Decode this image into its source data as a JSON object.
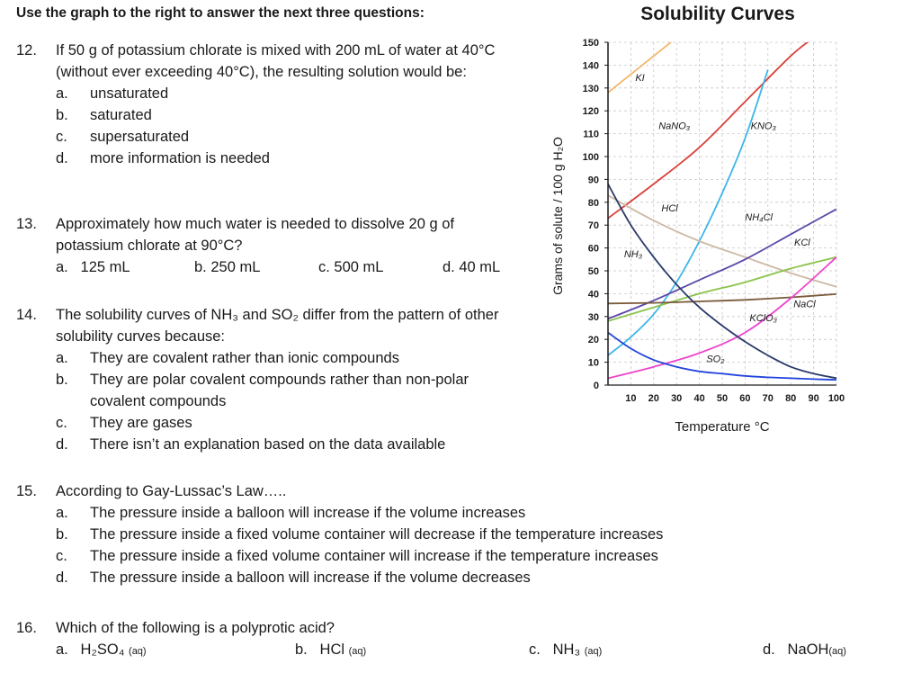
{
  "intro": "Use the graph to the right to answer the next three questions:",
  "questions": [
    {
      "number": "12.",
      "text": "If 50 g of potassium chlorate is mixed with 200 mL of water at 40°C (without ever exceeding 40°C), the resulting solution would be:",
      "options": [
        {
          "letter": "a.",
          "text": "unsaturated"
        },
        {
          "letter": "b.",
          "text": "saturated"
        },
        {
          "letter": "c.",
          "text": "supersaturated"
        },
        {
          "letter": "d.",
          "text": "more information is needed"
        }
      ]
    },
    {
      "number": "13.",
      "text": "Approximately how much water is needed to dissolve 20 g of potassium chlorate at 90°C?",
      "options": [
        {
          "letter": "a.",
          "text": "125 mL"
        },
        {
          "letter": "",
          "text": "b. 250 mL"
        },
        {
          "letter": "",
          "text": "c. 500 mL"
        },
        {
          "letter": "",
          "text": "d. 40 mL"
        }
      ]
    },
    {
      "number": "14.",
      "text": "The solubility curves of NH₃ and SO₂ differ from the pattern of other solubility curves because:",
      "options": [
        {
          "letter": "a.",
          "text": "They are covalent rather than ionic compounds"
        },
        {
          "letter": "b.",
          "text": "They are polar covalent compounds rather than non-polar covalent compounds"
        },
        {
          "letter": "c.",
          "text": "They are gases"
        },
        {
          "letter": "d.",
          "text": "There isn’t an explanation based on the data available"
        }
      ]
    },
    {
      "number": "15.",
      "text": "According to Gay-Lussac’s Law…..",
      "options": [
        {
          "letter": "a.",
          "text": "The pressure inside a balloon will increase if the volume increases"
        },
        {
          "letter": "b.",
          "text": "The pressure inside a fixed volume container will decrease if the temperature increases"
        },
        {
          "letter": "c.",
          "text": "The pressure inside a fixed volume container will increase if the temperature increases"
        },
        {
          "letter": "d.",
          "text": "The pressure inside a balloon will increase if the volume decreases"
        }
      ]
    },
    {
      "number": "16.",
      "text": "Which of the following is a polyprotic acid?",
      "options": [
        {
          "letter": "a.",
          "formula": "H₂SO₄",
          "state": "(aq)"
        },
        {
          "letter": "b.",
          "formula": "HCl",
          "state": "(aq)"
        },
        {
          "letter": "c.",
          "formula": "NH₃",
          "state": "(aq)"
        },
        {
          "letter": "d.",
          "formula": "NaOH",
          "state": "(aq)"
        }
      ]
    }
  ],
  "chart_data": {
    "type": "line",
    "title": "Solubility Curves",
    "xlabel": "Temperature °C",
    "ylabel": "Grams of solute / 100 g H₂O",
    "xlim": [
      0,
      100
    ],
    "ylim": [
      0,
      150
    ],
    "xticks": [
      10,
      20,
      30,
      40,
      50,
      60,
      70,
      80,
      90,
      100
    ],
    "yticks": [
      0,
      10,
      20,
      30,
      40,
      50,
      60,
      70,
      80,
      90,
      100,
      110,
      120,
      130,
      140,
      150
    ],
    "grid": true,
    "series": [
      {
        "name": "KI",
        "color": "#f4b66a",
        "x": [
          0,
          10,
          20,
          30
        ],
        "y": [
          128,
          136,
          144,
          152
        ]
      },
      {
        "name": "NaNO₃",
        "color": "#d9413a",
        "x": [
          0,
          20,
          40,
          60,
          80,
          90
        ],
        "y": [
          73,
          88,
          104,
          124,
          144,
          152
        ]
      },
      {
        "name": "KNO₃",
        "color": "#3db6e8",
        "x": [
          0,
          10,
          20,
          30,
          40,
          50,
          60,
          70
        ],
        "y": [
          13,
          21,
          31,
          45,
          63,
          84,
          108,
          138
        ]
      },
      {
        "name": "HCl",
        "color": "#cdb9a4",
        "x": [
          0,
          20,
          40,
          60,
          80,
          100
        ],
        "y": [
          83,
          72,
          63,
          56,
          49,
          43
        ]
      },
      {
        "name": "NH₄Cl",
        "color": "#5b48a8",
        "x": [
          0,
          20,
          40,
          60,
          80,
          100
        ],
        "y": [
          29,
          37,
          46,
          55,
          66,
          77
        ]
      },
      {
        "name": "KCl",
        "color": "#8bc34a",
        "x": [
          0,
          20,
          40,
          60,
          80,
          100
        ],
        "y": [
          28,
          34,
          40,
          45,
          51,
          56
        ]
      },
      {
        "name": "NaCl",
        "color": "#7a5a3a",
        "x": [
          0,
          20,
          40,
          60,
          80,
          100
        ],
        "y": [
          35.7,
          36,
          36.6,
          37.3,
          38.4,
          39.8
        ]
      },
      {
        "name": "KClO₃",
        "color": "#ee44cc",
        "x": [
          0,
          20,
          40,
          60,
          80,
          100
        ],
        "y": [
          3,
          8,
          14,
          23,
          38,
          56
        ]
      },
      {
        "name": "NH₃",
        "color": "#2a3a6a",
        "x": [
          0,
          10,
          20,
          30,
          40,
          50,
          60,
          70,
          80,
          90,
          100
        ],
        "y": [
          88,
          70,
          56,
          44,
          34,
          26,
          19,
          13,
          8,
          5,
          3
        ]
      },
      {
        "name": "SO₂",
        "color": "#2244dd",
        "x": [
          0,
          10,
          20,
          30,
          40,
          50,
          60,
          70,
          80,
          90,
          100
        ],
        "y": [
          23,
          16,
          11,
          8,
          6,
          5,
          4,
          3.4,
          3,
          2.6,
          2.3
        ]
      }
    ],
    "labels": [
      {
        "text": "KI",
        "x": 14,
        "y": 133,
        "color": "#f4b66a"
      },
      {
        "text": "NaNO₃",
        "x": 29,
        "y": 112,
        "color": "#d9413a"
      },
      {
        "text": "KNO₃",
        "x": 68,
        "y": 112,
        "color": "#3db6e8"
      },
      {
        "text": "HCl",
        "x": 27,
        "y": 76,
        "color": "#cdb9a4"
      },
      {
        "text": "NH₄Cl",
        "x": 66,
        "y": 72,
        "color": "#5b48a8"
      },
      {
        "text": "KCl",
        "x": 85,
        "y": 61,
        "color": "#8bc34a"
      },
      {
        "text": "NH₃",
        "x": 11,
        "y": 56,
        "color": "#2a3a6a"
      },
      {
        "text": "NaCl",
        "x": 86,
        "y": 34,
        "color": "#7a5a3a"
      },
      {
        "text": "KClO₃",
        "x": 68,
        "y": 28,
        "color": "#ee44cc"
      },
      {
        "text": "SO₂",
        "x": 47,
        "y": 10,
        "color": "#2244dd"
      }
    ]
  }
}
